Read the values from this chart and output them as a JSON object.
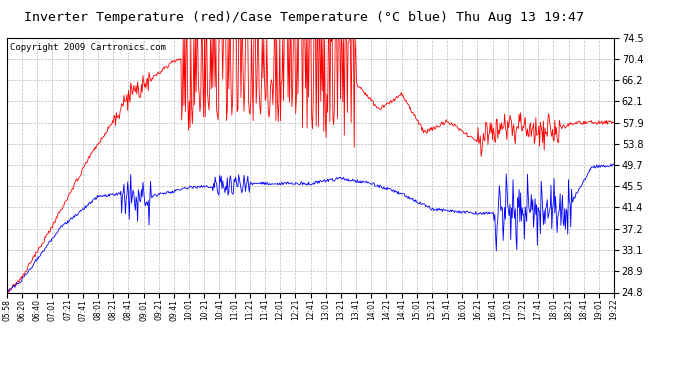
{
  "title": "Inverter Temperature (red)/Case Temperature (°C blue) Thu Aug 13 19:47",
  "copyright": "Copyright 2009 Cartronics.com",
  "y_ticks": [
    24.8,
    28.9,
    33.1,
    37.2,
    41.4,
    45.5,
    49.7,
    53.8,
    57.9,
    62.1,
    66.2,
    70.4,
    74.5
  ],
  "y_min": 24.8,
  "y_max": 74.5,
  "x_labels": [
    "05:58",
    "06:20",
    "06:40",
    "07:01",
    "07:21",
    "07:41",
    "08:01",
    "08:21",
    "08:41",
    "09:01",
    "09:21",
    "09:41",
    "10:01",
    "10:21",
    "10:41",
    "11:01",
    "11:21",
    "11:41",
    "12:01",
    "12:21",
    "12:41",
    "13:01",
    "13:21",
    "13:41",
    "14:01",
    "14:21",
    "14:41",
    "15:01",
    "15:21",
    "15:41",
    "16:01",
    "16:21",
    "16:41",
    "17:01",
    "17:21",
    "17:41",
    "18:01",
    "18:21",
    "18:41",
    "19:01",
    "19:22"
  ],
  "background_color": "#ffffff",
  "plot_bg_color": "#ffffff",
  "grid_color": "#bbbbbb",
  "red_color": "#ff0000",
  "blue_color": "#0000ff",
  "title_fontsize": 9.5,
  "copyright_fontsize": 6.5
}
